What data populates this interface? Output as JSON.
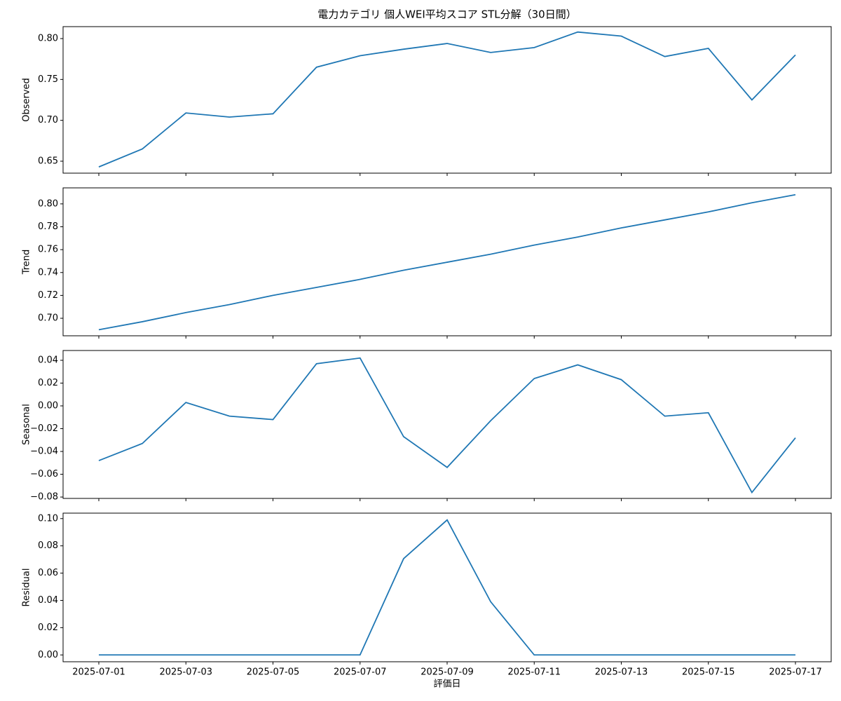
{
  "title": "電力カテゴリ 個人WEI平均スコア STL分解（30日間）",
  "xlabel": "評価日",
  "chart_data": [
    {
      "type": "line",
      "ylabel": "Observed",
      "color": "#1f77b4",
      "x": [
        "2025-07-01",
        "2025-07-02",
        "2025-07-03",
        "2025-07-04",
        "2025-07-05",
        "2025-07-06",
        "2025-07-07",
        "2025-07-08",
        "2025-07-09",
        "2025-07-10",
        "2025-07-11",
        "2025-07-12",
        "2025-07-13",
        "2025-07-14",
        "2025-07-15",
        "2025-07-16",
        "2025-07-17"
      ],
      "values": [
        0.643,
        0.665,
        0.709,
        0.704,
        0.708,
        0.765,
        0.779,
        0.787,
        0.794,
        0.783,
        0.789,
        0.808,
        0.803,
        0.778,
        0.788,
        0.725,
        0.78
      ],
      "ylim": [
        0.6354,
        0.8146
      ],
      "yticks": [
        {
          "value": 0.65,
          "label": "0.65"
        },
        {
          "value": 0.7,
          "label": "0.70"
        },
        {
          "value": 0.75,
          "label": "0.75"
        },
        {
          "value": 0.8,
          "label": "0.80"
        }
      ],
      "xticks": [
        "2025-07-01",
        "2025-07-03",
        "2025-07-05",
        "2025-07-07",
        "2025-07-09",
        "2025-07-11",
        "2025-07-13",
        "2025-07-15",
        "2025-07-17"
      ]
    },
    {
      "type": "line",
      "ylabel": "Trend",
      "color": "#1f77b4",
      "x": [
        "2025-07-01",
        "2025-07-02",
        "2025-07-03",
        "2025-07-04",
        "2025-07-05",
        "2025-07-06",
        "2025-07-07",
        "2025-07-08",
        "2025-07-09",
        "2025-07-10",
        "2025-07-11",
        "2025-07-12",
        "2025-07-13",
        "2025-07-14",
        "2025-07-15",
        "2025-07-16",
        "2025-07-17"
      ],
      "values": [
        0.69,
        0.697,
        0.705,
        0.712,
        0.72,
        0.727,
        0.734,
        0.742,
        0.749,
        0.756,
        0.764,
        0.771,
        0.779,
        0.786,
        0.793,
        0.801,
        0.808
      ],
      "ylim": [
        0.6847,
        0.814
      ],
      "yticks": [
        {
          "value": 0.7,
          "label": "0.70"
        },
        {
          "value": 0.72,
          "label": "0.72"
        },
        {
          "value": 0.74,
          "label": "0.74"
        },
        {
          "value": 0.76,
          "label": "0.76"
        },
        {
          "value": 0.78,
          "label": "0.78"
        },
        {
          "value": 0.8,
          "label": "0.80"
        }
      ],
      "xticks": [
        "2025-07-01",
        "2025-07-03",
        "2025-07-05",
        "2025-07-07",
        "2025-07-09",
        "2025-07-11",
        "2025-07-13",
        "2025-07-15",
        "2025-07-17"
      ]
    },
    {
      "type": "line",
      "ylabel": "Seasonal",
      "color": "#1f77b4",
      "x": [
        "2025-07-01",
        "2025-07-02",
        "2025-07-03",
        "2025-07-04",
        "2025-07-05",
        "2025-07-06",
        "2025-07-07",
        "2025-07-08",
        "2025-07-09",
        "2025-07-10",
        "2025-07-11",
        "2025-07-12",
        "2025-07-13",
        "2025-07-14",
        "2025-07-15",
        "2025-07-16",
        "2025-07-17"
      ],
      "values": [
        -0.048,
        -0.033,
        0.003,
        -0.009,
        -0.012,
        0.037,
        0.042,
        -0.027,
        -0.054,
        -0.013,
        0.024,
        0.036,
        0.023,
        -0.009,
        -0.006,
        -0.076,
        -0.028
      ],
      "ylim": [
        -0.0812,
        0.0486
      ],
      "yticks": [
        {
          "value": -0.08,
          "label": "−0.08"
        },
        {
          "value": -0.06,
          "label": "−0.06"
        },
        {
          "value": -0.04,
          "label": "−0.04"
        },
        {
          "value": -0.02,
          "label": "−0.02"
        },
        {
          "value": 0,
          "label": "0.00"
        },
        {
          "value": 0.02,
          "label": "0.02"
        },
        {
          "value": 0.04,
          "label": "0.04"
        }
      ],
      "xticks": [
        "2025-07-01",
        "2025-07-03",
        "2025-07-05",
        "2025-07-07",
        "2025-07-09",
        "2025-07-11",
        "2025-07-13",
        "2025-07-15",
        "2025-07-17"
      ]
    },
    {
      "type": "line",
      "ylabel": "Residual",
      "color": "#1f77b4",
      "x": [
        "2025-07-01",
        "2025-07-02",
        "2025-07-03",
        "2025-07-04",
        "2025-07-05",
        "2025-07-06",
        "2025-07-07",
        "2025-07-08",
        "2025-07-09",
        "2025-07-10",
        "2025-07-11",
        "2025-07-12",
        "2025-07-13",
        "2025-07-14",
        "2025-07-15",
        "2025-07-16",
        "2025-07-17"
      ],
      "values": [
        0,
        0,
        0,
        0,
        0,
        0,
        0,
        0.0706,
        0.099,
        0.039,
        0,
        0,
        0,
        0,
        0,
        0,
        0
      ],
      "ylim": [
        -0.005,
        0.104
      ],
      "yticks": [
        {
          "value": 0,
          "label": "0.00"
        },
        {
          "value": 0.02,
          "label": "0.02"
        },
        {
          "value": 0.04,
          "label": "0.04"
        },
        {
          "value": 0.06,
          "label": "0.06"
        },
        {
          "value": 0.08,
          "label": "0.08"
        },
        {
          "value": 0.1,
          "label": "0.10"
        }
      ],
      "xticks": [
        "2025-07-01",
        "2025-07-03",
        "2025-07-05",
        "2025-07-07",
        "2025-07-09",
        "2025-07-11",
        "2025-07-13",
        "2025-07-15",
        "2025-07-17"
      ]
    }
  ]
}
